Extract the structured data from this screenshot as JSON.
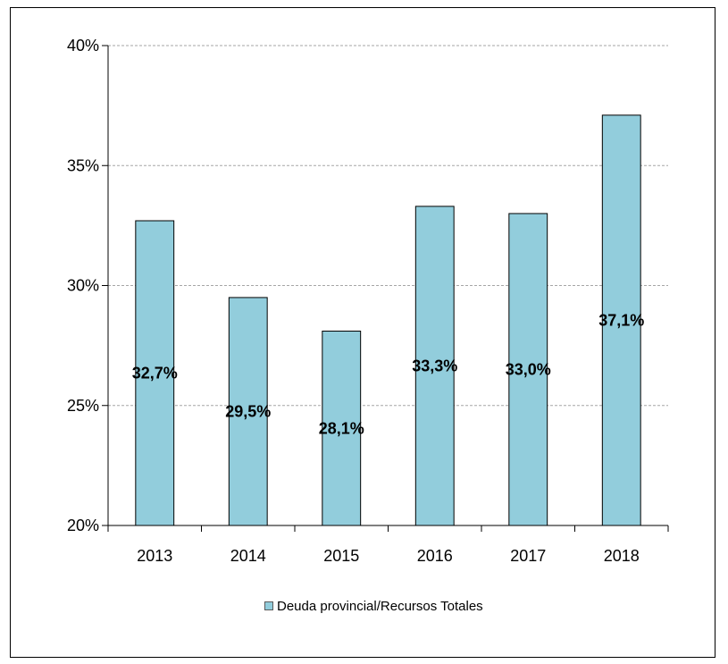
{
  "chart_data": {
    "type": "bar",
    "categories": [
      "2013",
      "2014",
      "2015",
      "2016",
      "2017",
      "2018"
    ],
    "series": [
      {
        "name": "Deuda provincial/Recursos Totales",
        "values": [
          32.7,
          29.5,
          28.1,
          33.3,
          33.0,
          37.1
        ],
        "data_labels": [
          "32,7%",
          "29,5%",
          "28,1%",
          "33,3%",
          "33,0%",
          "37,1%"
        ]
      }
    ],
    "ylim": [
      20,
      40
    ],
    "y_ticks": [
      20,
      25,
      30,
      35,
      40
    ],
    "y_tick_labels": [
      "20%",
      "25%",
      "30%",
      "35%",
      "40%"
    ],
    "grid": true,
    "legend_position": "bottom",
    "bar_color": "#92cddc",
    "bar_edge_color": "#000000",
    "grid_color": "#a6a6a6"
  }
}
